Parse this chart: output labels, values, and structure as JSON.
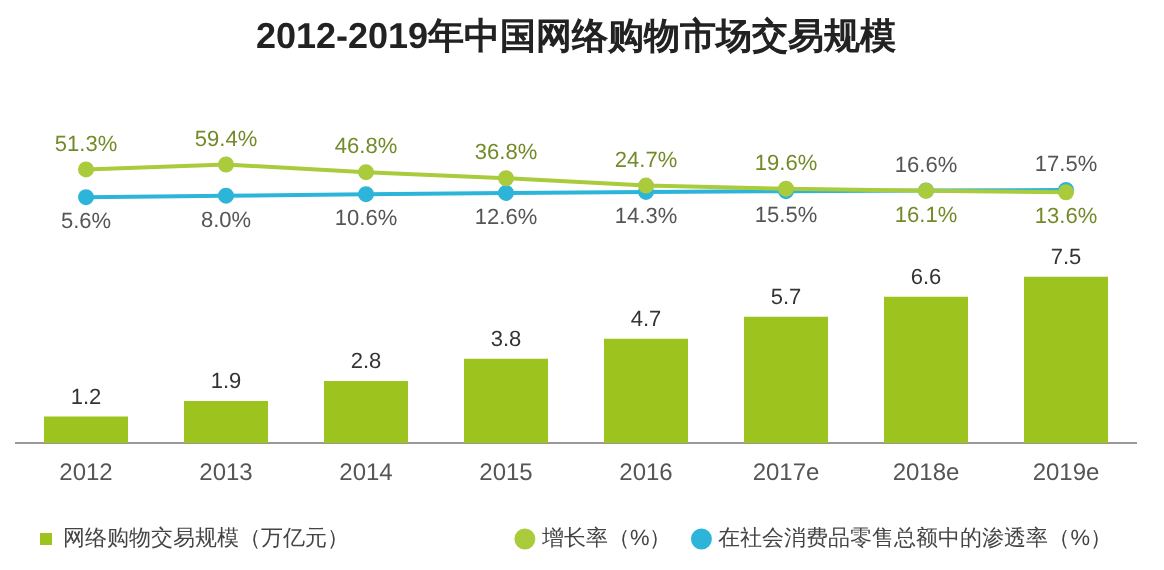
{
  "chart_data": [
    {
      "type": "line",
      "title": "2012-2019年中国网络购物市场交易规模",
      "categories": [
        null,
        null,
        null,
        null,
        null,
        null,
        null,
        null
      ],
      "tick_labels": false,
      "legend": "bottom right",
      "data_labels": true,
      "marker": "circle",
      "series": [
        {
          "name": "增长率（%）",
          "color": "#a9cb3c",
          "values": [
            51.3,
            59.4,
            46.8,
            36.8,
            24.7,
            19.6,
            16.1,
            13.6
          ],
          "value_labels": [
            "51.3%",
            "59.4%",
            "46.8%",
            "36.8%",
            "24.7%",
            "19.6%",
            "16.1%",
            "13.6%"
          ]
        },
        {
          "name": "在社会消费品零售总额中的渗透率（%）",
          "color": "#2cb5d8",
          "values": [
            5.6,
            8.0,
            10.6,
            12.6,
            14.3,
            15.5,
            16.6,
            17.5
          ],
          "value_labels": [
            "5.6%",
            "8.0%",
            "10.6%",
            "12.6%",
            "14.3%",
            "15.5%",
            "16.6%",
            "17.5%"
          ]
        }
      ]
    },
    {
      "type": "bar",
      "categories": [
        "2012",
        "2013",
        "2014",
        "2015",
        "2016",
        "2017e",
        "2018e",
        "2019e"
      ],
      "tick_labels": "x",
      "legend": "bottom left",
      "data_labels": true,
      "series": [
        {
          "name": "网络购物交易规模（万亿元）",
          "color": "#9dc31e",
          "values": [
            1.2,
            1.9,
            2.8,
            3.8,
            4.7,
            5.7,
            6.6,
            7.5
          ]
        }
      ]
    }
  ]
}
